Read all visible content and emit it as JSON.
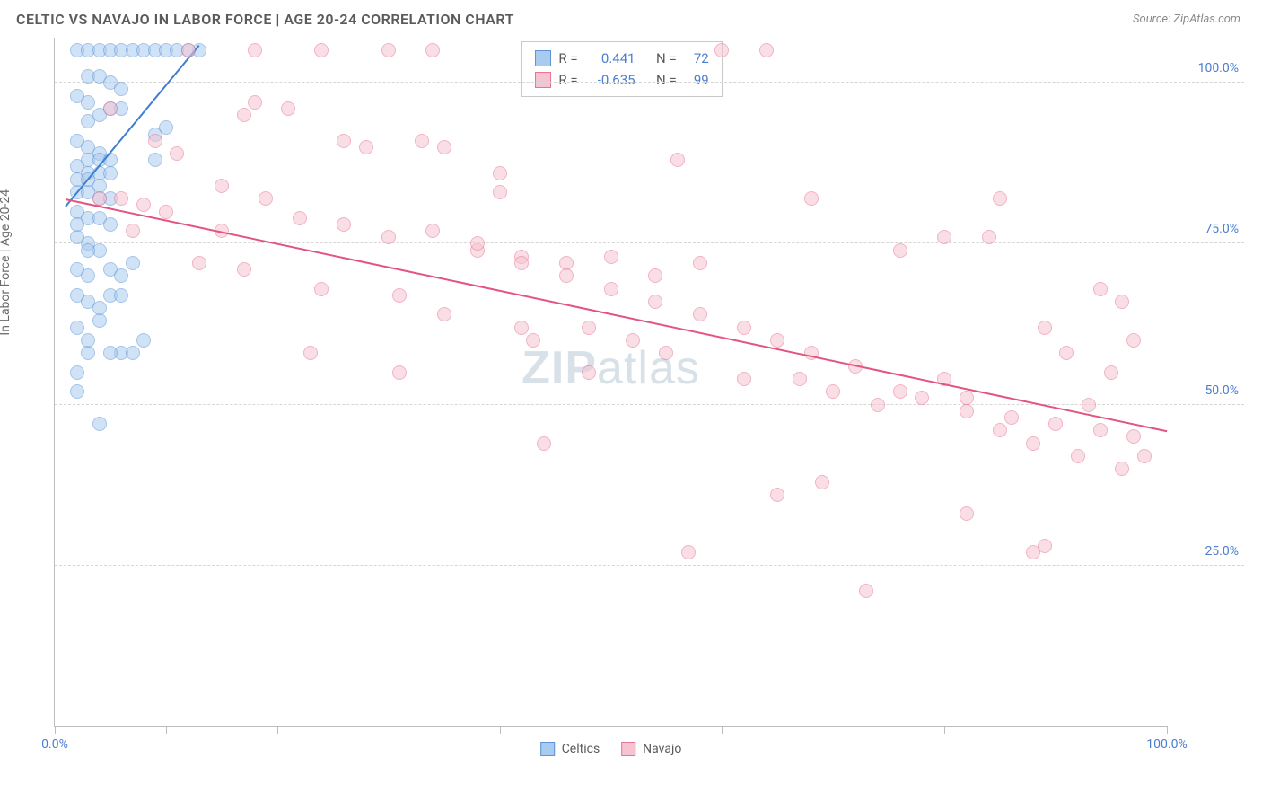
{
  "header": {
    "title": "CELTIC VS NAVAJO IN LABOR FORCE | AGE 20-24 CORRELATION CHART",
    "source": "Source: ZipAtlas.com"
  },
  "ylabel": "In Labor Force | Age 20-24",
  "watermark_zip": "ZIP",
  "watermark_atlas": "atlas",
  "chart": {
    "type": "scatter",
    "background_color": "#ffffff",
    "grid_color": "#d6d6d6",
    "axis_color": "#bdbdbd",
    "label_color": "#4b7fd1",
    "xlim": [
      0,
      100
    ],
    "ylim": [
      0,
      107
    ],
    "yticks": [
      25,
      50,
      75,
      100
    ],
    "ytick_labels": [
      "25.0%",
      "50.0%",
      "75.0%",
      "100.0%"
    ],
    "xticks": [
      0,
      10,
      20,
      40,
      60,
      80,
      100
    ],
    "xtick_labels_shown": {
      "0": "0.0%",
      "100": "100.0%"
    },
    "marker_radius": 8,
    "marker_opacity": 0.55,
    "series": {
      "celtics": {
        "label": "Celtics",
        "fill": "#a9cbef",
        "stroke": "#5d95d6",
        "line_color": "#3f7ecf",
        "R": "0.441",
        "N": "72",
        "trend": {
          "x1": 1,
          "y1": 81,
          "x2": 13,
          "y2": 106
        },
        "points": [
          [
            2,
            105
          ],
          [
            3,
            105
          ],
          [
            4,
            105
          ],
          [
            5,
            105
          ],
          [
            6,
            105
          ],
          [
            7,
            105
          ],
          [
            8,
            105
          ],
          [
            9,
            105
          ],
          [
            10,
            105
          ],
          [
            13,
            105
          ],
          [
            2,
            98
          ],
          [
            3,
            97
          ],
          [
            3,
            94
          ],
          [
            4,
            95
          ],
          [
            5,
            96
          ],
          [
            6,
            96
          ],
          [
            2,
            91
          ],
          [
            3,
            90
          ],
          [
            4,
            89
          ],
          [
            2,
            87
          ],
          [
            3,
            86
          ],
          [
            4,
            86
          ],
          [
            5,
            86
          ],
          [
            9,
            92
          ],
          [
            10,
            93
          ],
          [
            2,
            83
          ],
          [
            3,
            83
          ],
          [
            4,
            82
          ],
          [
            5,
            82
          ],
          [
            2,
            80
          ],
          [
            3,
            79
          ],
          [
            4,
            79
          ],
          [
            5,
            78
          ],
          [
            2,
            76
          ],
          [
            3,
            75
          ],
          [
            4,
            74
          ],
          [
            2,
            71
          ],
          [
            3,
            70
          ],
          [
            2,
            67
          ],
          [
            3,
            66
          ],
          [
            5,
            67
          ],
          [
            7,
            72
          ],
          [
            2,
            62
          ],
          [
            4,
            63
          ],
          [
            6,
            67
          ],
          [
            6,
            58
          ],
          [
            3,
            58
          ],
          [
            5,
            58
          ],
          [
            2,
            55
          ],
          [
            7,
            58
          ],
          [
            8,
            60
          ],
          [
            4,
            47
          ],
          [
            11,
            105
          ],
          [
            12,
            105
          ],
          [
            3,
            101
          ],
          [
            4,
            101
          ],
          [
            5,
            100
          ],
          [
            6,
            99
          ],
          [
            3,
            88
          ],
          [
            4,
            88
          ],
          [
            5,
            88
          ],
          [
            2,
            85
          ],
          [
            3,
            85
          ],
          [
            4,
            84
          ],
          [
            2,
            78
          ],
          [
            3,
            74
          ],
          [
            5,
            71
          ],
          [
            6,
            70
          ],
          [
            4,
            65
          ],
          [
            3,
            60
          ],
          [
            2,
            52
          ],
          [
            9,
            88
          ]
        ]
      },
      "navajo": {
        "label": "Navajo",
        "fill": "#f6c4d0",
        "stroke": "#e97495",
        "line_color": "#e35480",
        "R": "-0.635",
        "N": "99",
        "trend": {
          "x1": 1,
          "y1": 82,
          "x2": 100,
          "y2": 46
        },
        "points": [
          [
            4,
            82
          ],
          [
            6,
            82
          ],
          [
            8,
            81
          ],
          [
            10,
            80
          ],
          [
            5,
            96
          ],
          [
            9,
            91
          ],
          [
            12,
            105
          ],
          [
            18,
            105
          ],
          [
            24,
            105
          ],
          [
            30,
            105
          ],
          [
            34,
            105
          ],
          [
            60,
            105
          ],
          [
            64,
            105
          ],
          [
            11,
            89
          ],
          [
            15,
            84
          ],
          [
            19,
            82
          ],
          [
            22,
            79
          ],
          [
            26,
            78
          ],
          [
            30,
            76
          ],
          [
            34,
            77
          ],
          [
            38,
            74
          ],
          [
            42,
            73
          ],
          [
            46,
            72
          ],
          [
            50,
            73
          ],
          [
            54,
            70
          ],
          [
            58,
            72
          ],
          [
            17,
            95
          ],
          [
            21,
            96
          ],
          [
            35,
            90
          ],
          [
            28,
            90
          ],
          [
            56,
            88
          ],
          [
            40,
            86
          ],
          [
            13,
            72
          ],
          [
            17,
            71
          ],
          [
            24,
            68
          ],
          [
            31,
            67
          ],
          [
            35,
            64
          ],
          [
            42,
            62
          ],
          [
            43,
            60
          ],
          [
            48,
            62
          ],
          [
            52,
            60
          ],
          [
            55,
            58
          ],
          [
            62,
            54
          ],
          [
            67,
            54
          ],
          [
            70,
            52
          ],
          [
            74,
            50
          ],
          [
            78,
            51
          ],
          [
            82,
            49
          ],
          [
            86,
            48
          ],
          [
            90,
            47
          ],
          [
            94,
            46
          ],
          [
            97,
            45
          ],
          [
            98,
            42
          ],
          [
            96,
            40
          ],
          [
            92,
            42
          ],
          [
            88,
            44
          ],
          [
            85,
            46
          ],
          [
            82,
            51
          ],
          [
            80,
            54
          ],
          [
            76,
            52
          ],
          [
            72,
            56
          ],
          [
            68,
            58
          ],
          [
            65,
            60
          ],
          [
            62,
            62
          ],
          [
            58,
            64
          ],
          [
            54,
            66
          ],
          [
            50,
            68
          ],
          [
            46,
            70
          ],
          [
            42,
            72
          ],
          [
            38,
            75
          ],
          [
            7,
            77
          ],
          [
            15,
            77
          ],
          [
            23,
            58
          ],
          [
            31,
            55
          ],
          [
            65,
            36
          ],
          [
            69,
            38
          ],
          [
            82,
            33
          ],
          [
            88,
            27
          ],
          [
            89,
            28
          ],
          [
            73,
            21
          ],
          [
            57,
            27
          ],
          [
            96,
            66
          ],
          [
            94,
            68
          ],
          [
            97,
            60
          ],
          [
            95,
            55
          ],
          [
            93,
            50
          ],
          [
            91,
            58
          ],
          [
            89,
            62
          ],
          [
            84,
            76
          ],
          [
            80,
            76
          ],
          [
            76,
            74
          ],
          [
            85,
            82
          ],
          [
            68,
            82
          ],
          [
            18,
            97
          ],
          [
            26,
            91
          ],
          [
            33,
            91
          ],
          [
            40,
            83
          ],
          [
            48,
            55
          ],
          [
            44,
            44
          ]
        ]
      }
    }
  },
  "stats_legend": {
    "R_label": "R =",
    "N_label": "N ="
  },
  "bottom_legend": {
    "items": [
      "celtics",
      "navajo"
    ]
  }
}
